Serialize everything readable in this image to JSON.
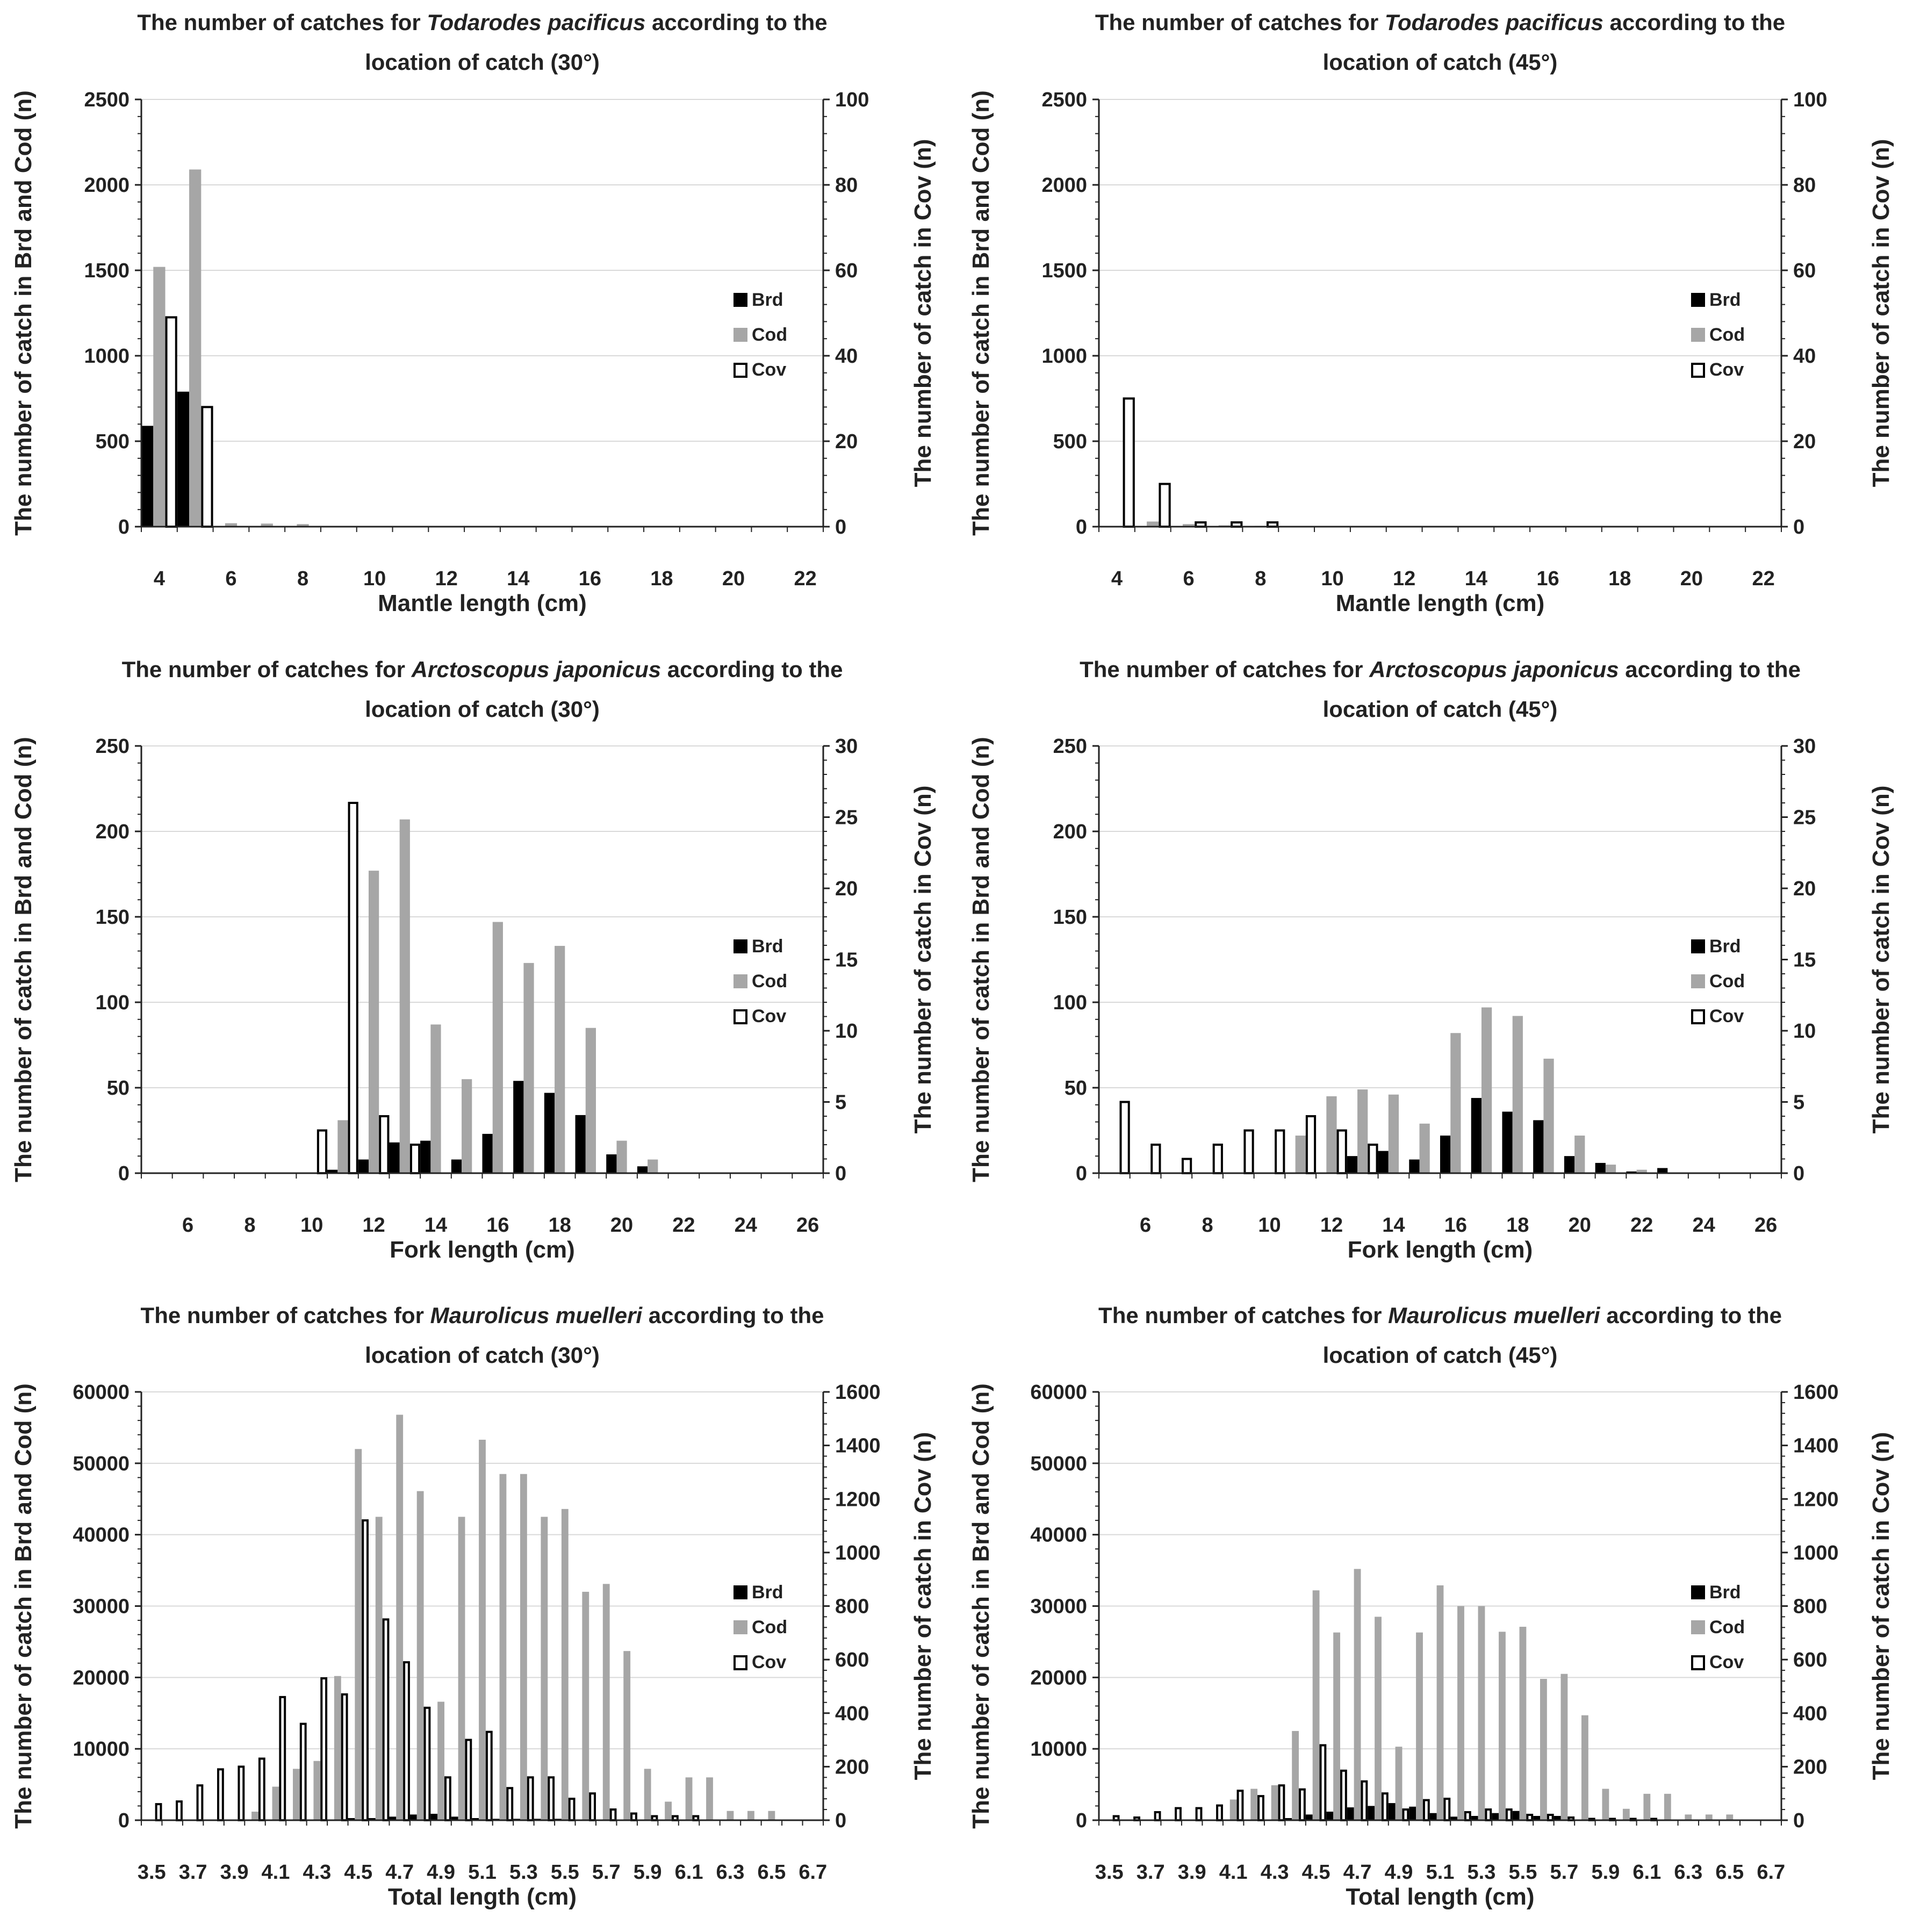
{
  "legend_labels": [
    "Brd",
    "Cod",
    "Cov"
  ],
  "colors": {
    "Brd": "#000000",
    "Cod": "#a6a6a6",
    "Cov": "#ffffff",
    "grid": "#d9d9d9",
    "axis": "#222222"
  },
  "chart_data": [
    {
      "type": "bar",
      "title_pre": "The number of catches for ",
      "species": "Todarodes pacificus",
      "title_post": " according to the",
      "title_line2": "location of catch (30°)",
      "xlabel": "Mantle length (cm)",
      "ylabel": "The number of catch in Brd and Cod (n)",
      "y2label": "The number of catch in Cov (n)",
      "categories": [
        4,
        5,
        6,
        7,
        8,
        9,
        10,
        11,
        12,
        13,
        14,
        15,
        16,
        17,
        18,
        19,
        20,
        21,
        22
      ],
      "tick_labels": [
        "4",
        "6",
        "8",
        "10",
        "12",
        "14",
        "16",
        "18",
        "20",
        "22"
      ],
      "ylim": [
        0,
        2500
      ],
      "yticks": [
        0,
        500,
        1000,
        1500,
        2000,
        2500
      ],
      "y2lim": [
        0,
        100
      ],
      "y2ticks": [
        0,
        20,
        40,
        60,
        80,
        100
      ],
      "series": [
        {
          "name": "Brd",
          "axis": "left",
          "values": [
            590,
            790,
            0,
            0,
            0,
            0,
            0,
            0,
            0,
            0,
            0,
            0,
            0,
            0,
            0,
            0,
            0,
            0,
            0
          ]
        },
        {
          "name": "Cod",
          "axis": "left",
          "values": [
            1520,
            2090,
            20,
            18,
            15,
            0,
            0,
            0,
            0,
            0,
            0,
            0,
            0,
            0,
            0,
            0,
            0,
            0,
            0
          ]
        },
        {
          "name": "Cov",
          "axis": "right",
          "values": [
            49,
            28,
            0,
            0,
            0,
            0,
            0,
            0,
            0,
            0,
            0,
            0,
            0,
            0,
            0,
            0,
            0,
            0,
            0
          ]
        }
      ]
    },
    {
      "type": "bar",
      "title_pre": "The number of catches for ",
      "species": "Todarodes pacificus",
      "title_post": " according to the",
      "title_line2": "location of catch (45°)",
      "xlabel": "Mantle length (cm)",
      "ylabel": "The number of catch in Brd and Cod (n)",
      "y2label": "The number of catch in Cov (n)",
      "categories": [
        4,
        5,
        6,
        7,
        8,
        9,
        10,
        11,
        12,
        13,
        14,
        15,
        16,
        17,
        18,
        19,
        20,
        21,
        22
      ],
      "tick_labels": [
        "4",
        "6",
        "8",
        "10",
        "12",
        "14",
        "16",
        "18",
        "20",
        "22"
      ],
      "ylim": [
        0,
        2500
      ],
      "yticks": [
        0,
        500,
        1000,
        1500,
        2000,
        2500
      ],
      "y2lim": [
        0,
        100
      ],
      "y2ticks": [
        0,
        20,
        40,
        60,
        80,
        100
      ],
      "series": [
        {
          "name": "Brd",
          "axis": "left",
          "values": [
            0,
            0,
            0,
            0,
            0,
            0,
            0,
            0,
            0,
            0,
            0,
            0,
            0,
            0,
            0,
            0,
            0,
            0,
            0
          ]
        },
        {
          "name": "Cod",
          "axis": "left",
          "values": [
            0,
            30,
            15,
            8,
            5,
            0,
            0,
            0,
            0,
            0,
            0,
            0,
            0,
            0,
            0,
            0,
            0,
            0,
            0
          ]
        },
        {
          "name": "Cov",
          "axis": "right",
          "values": [
            30,
            10,
            1,
            1,
            1,
            0,
            0,
            0,
            0,
            0,
            0,
            0,
            0,
            0,
            0,
            0,
            0,
            0,
            0
          ]
        }
      ]
    },
    {
      "type": "bar",
      "title_pre": "The number of catches for ",
      "species": "Arctoscopus japonicus",
      "title_post": " according to the",
      "title_line2": "location of catch (30°)",
      "xlabel": "Fork length (cm)",
      "ylabel": "The number of catch in Brd and Cod (n)",
      "y2label": "The number of catch in Cov (n)",
      "categories": [
        5,
        6,
        7,
        8,
        9,
        10,
        11,
        12,
        13,
        14,
        15,
        16,
        17,
        18,
        19,
        20,
        21,
        22,
        23,
        24,
        25,
        26
      ],
      "tick_labels": [
        "6",
        "8",
        "10",
        "12",
        "14",
        "16",
        "18",
        "20",
        "22",
        "24",
        "26"
      ],
      "ylim": [
        0,
        250
      ],
      "yticks": [
        0,
        50,
        100,
        150,
        200,
        250
      ],
      "y2lim": [
        0,
        30
      ],
      "y2ticks": [
        0,
        5,
        10,
        15,
        20,
        25,
        30
      ],
      "series": [
        {
          "name": "Brd",
          "axis": "left",
          "values": [
            0,
            0,
            0,
            0,
            0,
            0,
            2,
            8,
            18,
            19,
            8,
            23,
            54,
            47,
            34,
            11,
            4,
            0,
            0,
            0,
            0,
            0
          ]
        },
        {
          "name": "Cod",
          "axis": "left",
          "values": [
            0,
            0,
            0,
            0,
            0,
            0,
            31,
            177,
            207,
            87,
            55,
            147,
            123,
            133,
            85,
            19,
            8,
            0,
            0,
            0,
            0,
            0
          ]
        },
        {
          "name": "Cov",
          "axis": "right",
          "values": [
            0,
            0,
            0,
            0,
            0,
            3,
            26,
            4,
            2,
            0,
            0,
            0,
            0,
            0,
            0,
            0,
            0,
            0,
            0,
            0,
            0,
            0
          ]
        }
      ]
    },
    {
      "type": "bar",
      "title_pre": "The number of catches for ",
      "species": "Arctoscopus japonicus",
      "title_post": " according to the",
      "title_line2": "location of catch (45°)",
      "xlabel": "Fork length (cm)",
      "ylabel": "The number of catch in Brd and Cod (n)",
      "y2label": "The number of catch in Cov (n)",
      "categories": [
        5,
        6,
        7,
        8,
        9,
        10,
        11,
        12,
        13,
        14,
        15,
        16,
        17,
        18,
        19,
        20,
        21,
        22,
        23,
        24,
        25,
        26
      ],
      "tick_labels": [
        "6",
        "8",
        "10",
        "12",
        "14",
        "16",
        "18",
        "20",
        "22",
        "24",
        "26"
      ],
      "ylim": [
        0,
        250
      ],
      "yticks": [
        0,
        50,
        100,
        150,
        200,
        250
      ],
      "y2lim": [
        0,
        30
      ],
      "y2ticks": [
        0,
        5,
        10,
        15,
        20,
        25,
        30
      ],
      "series": [
        {
          "name": "Brd",
          "axis": "left",
          "values": [
            0,
            0,
            0,
            0,
            0,
            0,
            0,
            0,
            10,
            13,
            8,
            22,
            44,
            36,
            31,
            10,
            6,
            1,
            3,
            0,
            0,
            0
          ]
        },
        {
          "name": "Cod",
          "axis": "left",
          "values": [
            0,
            0,
            0,
            0,
            0,
            0,
            22,
            45,
            49,
            46,
            29,
            82,
            97,
            92,
            67,
            22,
            5,
            2,
            0,
            0,
            0,
            0
          ]
        },
        {
          "name": "Cov",
          "axis": "right",
          "values": [
            5,
            2,
            1,
            2,
            3,
            3,
            4,
            3,
            2,
            0,
            0,
            0,
            0,
            0,
            0,
            0,
            0,
            0,
            0,
            0,
            0,
            0
          ]
        }
      ]
    },
    {
      "type": "bar",
      "title_pre": "The number of catches for ",
      "species": "Maurolicus muelleri",
      "title_post": " according to the",
      "title_line2": "location of catch (30°)",
      "xlabel": "Total length (cm)",
      "ylabel": "The number of catch in Brd and Cod (n)",
      "y2label": "The number of catch in Cov (n)",
      "categories": [
        "3.5",
        "3.6",
        "3.7",
        "3.8",
        "3.9",
        "4.0",
        "4.1",
        "4.2",
        "4.3",
        "4.4",
        "4.5",
        "4.6",
        "4.7",
        "4.8",
        "4.9",
        "5.0",
        "5.1",
        "5.2",
        "5.3",
        "5.4",
        "5.5",
        "5.6",
        "5.7",
        "5.8",
        "5.9",
        "6.0",
        "6.1",
        "6.2",
        "6.3",
        "6.4",
        "6.5",
        "6.6",
        "6.7"
      ],
      "tick_labels": [
        "3.5",
        "3.7",
        "3.9",
        "4.1",
        "4.3",
        "4.5",
        "4.7",
        "4.9",
        "5.1",
        "5.3",
        "5.5",
        "5.7",
        "5.9",
        "6.1",
        "6.3",
        "6.5",
        "6.7"
      ],
      "ylim": [
        0,
        60000
      ],
      "yticks": [
        0,
        10000,
        20000,
        30000,
        40000,
        50000,
        60000
      ],
      "y2lim": [
        0,
        1600
      ],
      "y2ticks": [
        0,
        200,
        400,
        600,
        800,
        1000,
        1200,
        1400,
        1600
      ],
      "series": [
        {
          "name": "Brd",
          "axis": "left",
          "values": [
            0,
            0,
            0,
            0,
            0,
            0,
            0,
            0,
            0,
            0,
            300,
            300,
            500,
            800,
            900,
            500,
            300,
            200,
            200,
            200,
            200,
            100,
            0,
            0,
            0,
            0,
            0,
            0,
            0,
            0,
            0,
            0,
            0
          ]
        },
        {
          "name": "Cod",
          "axis": "left",
          "values": [
            0,
            0,
            0,
            0,
            0,
            1200,
            4700,
            7200,
            8300,
            20200,
            52000,
            42500,
            56800,
            46100,
            16600,
            42500,
            53300,
            48500,
            48500,
            42500,
            43600,
            32000,
            33100,
            23700,
            7200,
            2600,
            6000,
            6000,
            1300,
            1300,
            1300,
            0,
            0
          ]
        },
        {
          "name": "Cov",
          "axis": "right",
          "values": [
            60,
            70,
            130,
            190,
            200,
            230,
            460,
            360,
            530,
            470,
            1120,
            750,
            590,
            420,
            160,
            300,
            330,
            120,
            160,
            160,
            80,
            100,
            40,
            25,
            15,
            15,
            15,
            0,
            0,
            0,
            0,
            0,
            0
          ]
        }
      ]
    },
    {
      "type": "bar",
      "title_pre": "The number of catches for ",
      "species": "Maurolicus muelleri",
      "title_post": " according to the",
      "title_line2": "location of catch (45°)",
      "xlabel": "Total length (cm)",
      "ylabel": "The number of catch in Brd and Cod (n)",
      "y2label": "The number of catch in Cov (n)",
      "categories": [
        "3.5",
        "3.6",
        "3.7",
        "3.8",
        "3.9",
        "4.0",
        "4.1",
        "4.2",
        "4.3",
        "4.4",
        "4.5",
        "4.6",
        "4.7",
        "4.8",
        "4.9",
        "5.0",
        "5.1",
        "5.2",
        "5.3",
        "5.4",
        "5.5",
        "5.6",
        "5.7",
        "5.8",
        "5.9",
        "6.0",
        "6.1",
        "6.2",
        "6.3",
        "6.4",
        "6.5",
        "6.6",
        "6.7"
      ],
      "tick_labels": [
        "3.5",
        "3.7",
        "3.9",
        "4.1",
        "4.3",
        "4.5",
        "4.7",
        "4.9",
        "5.1",
        "5.3",
        "5.5",
        "5.7",
        "5.9",
        "6.1",
        "6.3",
        "6.5",
        "6.7"
      ],
      "ylim": [
        0,
        60000
      ],
      "yticks": [
        0,
        10000,
        20000,
        30000,
        40000,
        50000,
        60000
      ],
      "y2lim": [
        0,
        1600
      ],
      "y2ticks": [
        0,
        200,
        400,
        600,
        800,
        1000,
        1200,
        1400,
        1600
      ],
      "series": [
        {
          "name": "Brd",
          "axis": "left",
          "values": [
            0,
            0,
            0,
            0,
            0,
            0,
            0,
            0,
            0,
            300,
            800,
            1200,
            1800,
            2000,
            2400,
            1900,
            1000,
            500,
            600,
            1000,
            1300,
            600,
            600,
            0,
            0,
            0,
            0,
            0,
            0,
            0,
            0,
            0,
            0
          ]
        },
        {
          "name": "Cod",
          "axis": "left",
          "values": [
            0,
            0,
            0,
            0,
            0,
            0,
            2900,
            4400,
            4900,
            12500,
            32200,
            26300,
            35200,
            28500,
            10300,
            26300,
            32900,
            30000,
            30000,
            26400,
            27100,
            19800,
            20500,
            14700,
            4400,
            1600,
            3700,
            3700,
            800,
            800,
            800,
            0,
            0
          ]
        },
        {
          "name": "Cov",
          "axis": "right",
          "values": [
            15,
            10,
            30,
            45,
            45,
            55,
            110,
            90,
            130,
            115,
            280,
            185,
            145,
            100,
            40,
            75,
            80,
            30,
            40,
            40,
            20,
            20,
            10,
            5,
            5,
            5,
            5,
            0,
            0,
            0,
            0,
            0,
            0
          ]
        }
      ]
    }
  ]
}
